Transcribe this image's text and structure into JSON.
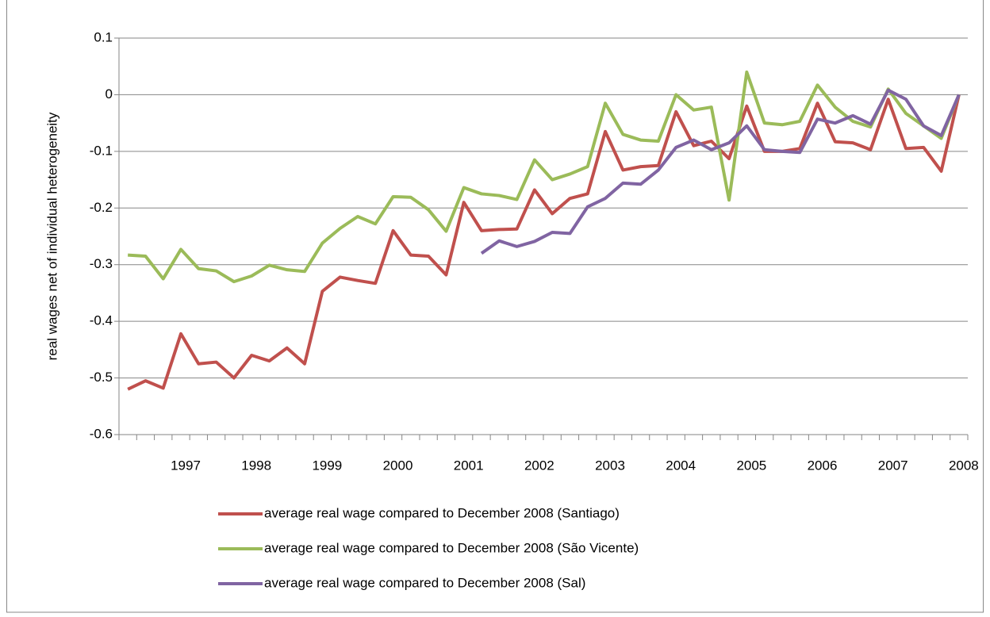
{
  "chart_data": {
    "type": "line",
    "y_label": "real wages net of individual heterogeneity",
    "categories": [
      null,
      null,
      null,
      "1997",
      null,
      null,
      null,
      "1998",
      null,
      null,
      null,
      "1999",
      null,
      null,
      null,
      "2000",
      null,
      null,
      null,
      "2001",
      null,
      null,
      null,
      "2002",
      null,
      null,
      null,
      "2003",
      null,
      null,
      null,
      "2004",
      null,
      null,
      null,
      "2005",
      null,
      null,
      null,
      "2006",
      null,
      null,
      null,
      "2007",
      null,
      null,
      null,
      "2008"
    ],
    "series": [
      {
        "name": "average real wage compared to December 2008 (Santiago)",
        "color": "#c0504d",
        "values": [
          -0.52,
          -0.505,
          -0.518,
          -0.422,
          -0.475,
          -0.472,
          -0.5,
          -0.46,
          -0.47,
          -0.447,
          -0.475,
          -0.347,
          -0.322,
          -0.328,
          -0.333,
          -0.24,
          -0.283,
          -0.285,
          -0.318,
          -0.19,
          -0.24,
          -0.238,
          -0.237,
          -0.168,
          -0.21,
          -0.183,
          -0.175,
          -0.065,
          -0.133,
          -0.127,
          -0.125,
          -0.03,
          -0.09,
          -0.082,
          -0.113,
          -0.02,
          -0.1,
          -0.1,
          -0.095,
          -0.015,
          -0.083,
          -0.085,
          -0.097,
          -0.008,
          -0.095,
          -0.093,
          -0.135,
          0
        ]
      },
      {
        "name": "average real wage compared to December 2008 (São Vicente)",
        "color": "#9bbb59",
        "values": [
          -0.283,
          -0.285,
          -0.325,
          -0.273,
          -0.307,
          -0.311,
          -0.33,
          -0.32,
          -0.301,
          -0.309,
          -0.312,
          -0.262,
          -0.236,
          -0.215,
          -0.228,
          -0.18,
          -0.181,
          -0.203,
          -0.241,
          -0.164,
          -0.175,
          -0.178,
          -0.185,
          -0.115,
          -0.15,
          -0.14,
          -0.127,
          -0.015,
          -0.07,
          -0.08,
          -0.082,
          0,
          -0.027,
          -0.022,
          -0.186,
          0.04,
          -0.05,
          -0.053,
          -0.047,
          0.017,
          -0.022,
          -0.047,
          -0.057,
          0.01,
          -0.033,
          -0.055,
          -0.077,
          0
        ]
      },
      {
        "name": "average real wage compared to December 2008 (Sal)",
        "color": "#8064a2",
        "values": [
          null,
          null,
          null,
          null,
          null,
          null,
          null,
          null,
          null,
          null,
          null,
          null,
          null,
          null,
          null,
          null,
          null,
          null,
          null,
          null,
          -0.28,
          -0.258,
          -0.268,
          -0.259,
          -0.243,
          -0.245,
          -0.198,
          -0.183,
          -0.156,
          -0.158,
          -0.133,
          -0.093,
          -0.08,
          -0.097,
          -0.085,
          -0.055,
          -0.097,
          -0.1,
          -0.102,
          -0.043,
          -0.05,
          -0.037,
          -0.052,
          0.008,
          -0.008,
          -0.055,
          -0.072,
          0
        ]
      }
    ],
    "ylim": [
      -0.6,
      0.1
    ],
    "yticks": [
      0.1,
      0,
      -0.1,
      -0.2,
      -0.3,
      -0.4,
      -0.5,
      -0.6
    ],
    "grid": true,
    "legend": "bottom"
  }
}
